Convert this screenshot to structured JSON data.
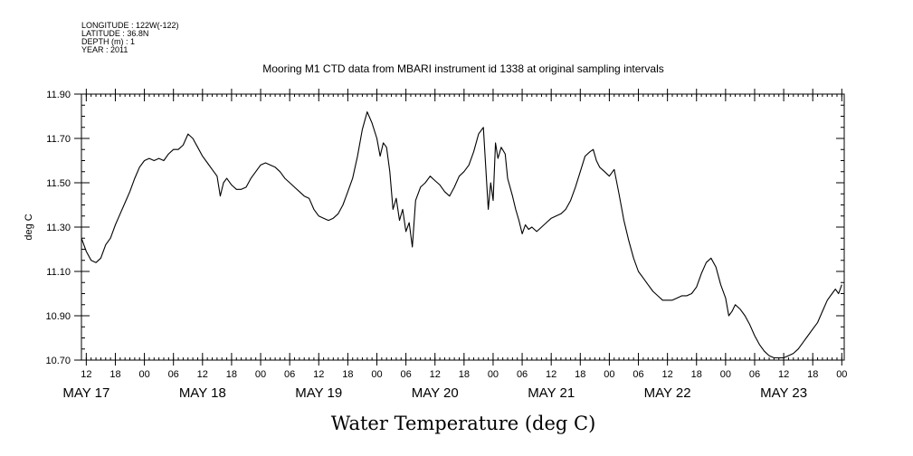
{
  "header": {
    "meta_lines": [
      "LONGITUDE : 122W(-122)",
      "LATITUDE : 36.8N",
      "DEPTH (m) : 1",
      "YEAR : 2011"
    ],
    "title": "Mooring M1 CTD data from MBARI instrument id 1338 at original sampling intervals"
  },
  "chart_data": {
    "type": "line",
    "title": "Mooring M1 CTD data from MBARI instrument id 1338 at original sampling intervals",
    "xlabel": "Water Temperature (deg C)",
    "ylabel": "deg C",
    "ylim": [
      10.7,
      11.9
    ],
    "y_ticks": [
      "10.70",
      "10.90",
      "11.10",
      "11.30",
      "11.50",
      "11.70",
      "11.90"
    ],
    "xlim": [
      "2011-05-17 11:00",
      "2011-05-24 00:30"
    ],
    "x_hour_ticks": [
      {
        "t": "2011-05-17 12:00",
        "label": "12"
      },
      {
        "t": "2011-05-17 18:00",
        "label": "18"
      },
      {
        "t": "2011-05-18 00:00",
        "label": "00"
      },
      {
        "t": "2011-05-18 06:00",
        "label": "06"
      },
      {
        "t": "2011-05-18 12:00",
        "label": "12"
      },
      {
        "t": "2011-05-18 18:00",
        "label": "18"
      },
      {
        "t": "2011-05-19 00:00",
        "label": "00"
      },
      {
        "t": "2011-05-19 06:00",
        "label": "06"
      },
      {
        "t": "2011-05-19 12:00",
        "label": "12"
      },
      {
        "t": "2011-05-19 18:00",
        "label": "18"
      },
      {
        "t": "2011-05-20 00:00",
        "label": "00"
      },
      {
        "t": "2011-05-20 06:00",
        "label": "06"
      },
      {
        "t": "2011-05-20 12:00",
        "label": "12"
      },
      {
        "t": "2011-05-20 18:00",
        "label": "18"
      },
      {
        "t": "2011-05-21 00:00",
        "label": "00"
      },
      {
        "t": "2011-05-21 06:00",
        "label": "06"
      },
      {
        "t": "2011-05-21 12:00",
        "label": "12"
      },
      {
        "t": "2011-05-21 18:00",
        "label": "18"
      },
      {
        "t": "2011-05-22 00:00",
        "label": "00"
      },
      {
        "t": "2011-05-22 06:00",
        "label": "06"
      },
      {
        "t": "2011-05-22 12:00",
        "label": "12"
      },
      {
        "t": "2011-05-22 18:00",
        "label": "18"
      },
      {
        "t": "2011-05-23 00:00",
        "label": "00"
      },
      {
        "t": "2011-05-23 06:00",
        "label": "06"
      },
      {
        "t": "2011-05-23 12:00",
        "label": "12"
      },
      {
        "t": "2011-05-23 18:00",
        "label": "18"
      },
      {
        "t": "2011-05-24 00:00",
        "label": "00"
      }
    ],
    "x_day_labels": [
      {
        "t": "2011-05-17 12:00",
        "label": "MAY 17"
      },
      {
        "t": "2011-05-18 12:00",
        "label": "MAY 18"
      },
      {
        "t": "2011-05-19 12:00",
        "label": "MAY 19"
      },
      {
        "t": "2011-05-20 12:00",
        "label": "MAY 20"
      },
      {
        "t": "2011-05-21 12:00",
        "label": "MAY 21"
      },
      {
        "t": "2011-05-22 12:00",
        "label": "MAY 22"
      },
      {
        "t": "2011-05-23 12:00",
        "label": "MAY 23"
      }
    ],
    "grid": false,
    "series": [
      {
        "color": "#000000",
        "points": [
          [
            "2011-05-17 11:00",
            11.25
          ],
          [
            "2011-05-17 12:00",
            11.19
          ],
          [
            "2011-05-17 13:00",
            11.15
          ],
          [
            "2011-05-17 14:00",
            11.14
          ],
          [
            "2011-05-17 15:00",
            11.16
          ],
          [
            "2011-05-17 16:00",
            11.22
          ],
          [
            "2011-05-17 17:00",
            11.25
          ],
          [
            "2011-05-17 18:00",
            11.31
          ],
          [
            "2011-05-17 19:00",
            11.36
          ],
          [
            "2011-05-17 20:00",
            11.41
          ],
          [
            "2011-05-17 21:00",
            11.46
          ],
          [
            "2011-05-17 22:00",
            11.52
          ],
          [
            "2011-05-17 23:00",
            11.57
          ],
          [
            "2011-05-18 00:00",
            11.6
          ],
          [
            "2011-05-18 01:00",
            11.61
          ],
          [
            "2011-05-18 02:00",
            11.6
          ],
          [
            "2011-05-18 03:00",
            11.61
          ],
          [
            "2011-05-18 04:00",
            11.6
          ],
          [
            "2011-05-18 05:00",
            11.63
          ],
          [
            "2011-05-18 06:00",
            11.65
          ],
          [
            "2011-05-18 07:00",
            11.65
          ],
          [
            "2011-05-18 08:00",
            11.67
          ],
          [
            "2011-05-18 09:00",
            11.72
          ],
          [
            "2011-05-18 10:00",
            11.7
          ],
          [
            "2011-05-18 11:00",
            11.66
          ],
          [
            "2011-05-18 12:00",
            11.62
          ],
          [
            "2011-05-18 13:00",
            11.59
          ],
          [
            "2011-05-18 14:00",
            11.56
          ],
          [
            "2011-05-18 15:00",
            11.53
          ],
          [
            "2011-05-18 15:40",
            11.44
          ],
          [
            "2011-05-18 16:20",
            11.5
          ],
          [
            "2011-05-18 17:00",
            11.52
          ],
          [
            "2011-05-18 18:00",
            11.49
          ],
          [
            "2011-05-18 19:00",
            11.47
          ],
          [
            "2011-05-18 20:00",
            11.47
          ],
          [
            "2011-05-18 21:00",
            11.48
          ],
          [
            "2011-05-18 22:00",
            11.52
          ],
          [
            "2011-05-18 23:00",
            11.55
          ],
          [
            "2011-05-19 00:00",
            11.58
          ],
          [
            "2011-05-19 01:00",
            11.59
          ],
          [
            "2011-05-19 02:00",
            11.58
          ],
          [
            "2011-05-19 03:00",
            11.57
          ],
          [
            "2011-05-19 04:00",
            11.55
          ],
          [
            "2011-05-19 05:00",
            11.52
          ],
          [
            "2011-05-19 06:00",
            11.5
          ],
          [
            "2011-05-19 07:00",
            11.48
          ],
          [
            "2011-05-19 08:00",
            11.46
          ],
          [
            "2011-05-19 09:00",
            11.44
          ],
          [
            "2011-05-19 10:00",
            11.43
          ],
          [
            "2011-05-19 11:00",
            11.38
          ],
          [
            "2011-05-19 12:00",
            11.35
          ],
          [
            "2011-05-19 13:00",
            11.34
          ],
          [
            "2011-05-19 14:00",
            11.33
          ],
          [
            "2011-05-19 15:00",
            11.34
          ],
          [
            "2011-05-19 16:00",
            11.36
          ],
          [
            "2011-05-19 17:00",
            11.4
          ],
          [
            "2011-05-19 18:00",
            11.46
          ],
          [
            "2011-05-19 19:00",
            11.52
          ],
          [
            "2011-05-19 20:00",
            11.62
          ],
          [
            "2011-05-19 21:00",
            11.74
          ],
          [
            "2011-05-19 22:00",
            11.82
          ],
          [
            "2011-05-19 23:00",
            11.77
          ],
          [
            "2011-05-20 00:00",
            11.7
          ],
          [
            "2011-05-20 00:40",
            11.62
          ],
          [
            "2011-05-20 01:20",
            11.68
          ],
          [
            "2011-05-20 02:00",
            11.66
          ],
          [
            "2011-05-20 02:40",
            11.55
          ],
          [
            "2011-05-20 03:20",
            11.38
          ],
          [
            "2011-05-20 04:00",
            11.43
          ],
          [
            "2011-05-20 04:40",
            11.33
          ],
          [
            "2011-05-20 05:20",
            11.38
          ],
          [
            "2011-05-20 06:00",
            11.28
          ],
          [
            "2011-05-20 06:40",
            11.32
          ],
          [
            "2011-05-20 07:20",
            11.21
          ],
          [
            "2011-05-20 08:00",
            11.42
          ],
          [
            "2011-05-20 09:00",
            11.48
          ],
          [
            "2011-05-20 10:00",
            11.5
          ],
          [
            "2011-05-20 11:00",
            11.53
          ],
          [
            "2011-05-20 12:00",
            11.51
          ],
          [
            "2011-05-20 13:00",
            11.49
          ],
          [
            "2011-05-20 14:00",
            11.46
          ],
          [
            "2011-05-20 15:00",
            11.44
          ],
          [
            "2011-05-20 16:00",
            11.48
          ],
          [
            "2011-05-20 17:00",
            11.53
          ],
          [
            "2011-05-20 18:00",
            11.55
          ],
          [
            "2011-05-20 19:00",
            11.58
          ],
          [
            "2011-05-20 20:00",
            11.64
          ],
          [
            "2011-05-20 21:00",
            11.72
          ],
          [
            "2011-05-20 22:00",
            11.75
          ],
          [
            "2011-05-20 23:00",
            11.38
          ],
          [
            "2011-05-20 23:30",
            11.5
          ],
          [
            "2011-05-21 00:00",
            11.42
          ],
          [
            "2011-05-21 00:30",
            11.68
          ],
          [
            "2011-05-21 01:00",
            11.61
          ],
          [
            "2011-05-21 01:40",
            11.66
          ],
          [
            "2011-05-21 02:30",
            11.63
          ],
          [
            "2011-05-21 03:00",
            11.52
          ],
          [
            "2011-05-21 04:00",
            11.44
          ],
          [
            "2011-05-21 04:40",
            11.38
          ],
          [
            "2011-05-21 05:20",
            11.33
          ],
          [
            "2011-05-21 06:00",
            11.27
          ],
          [
            "2011-05-21 06:40",
            11.31
          ],
          [
            "2011-05-21 07:20",
            11.29
          ],
          [
            "2011-05-21 08:00",
            11.3
          ],
          [
            "2011-05-21 09:00",
            11.28
          ],
          [
            "2011-05-21 10:00",
            11.3
          ],
          [
            "2011-05-21 11:00",
            11.32
          ],
          [
            "2011-05-21 12:00",
            11.34
          ],
          [
            "2011-05-21 13:00",
            11.35
          ],
          [
            "2011-05-21 14:00",
            11.36
          ],
          [
            "2011-05-21 15:00",
            11.38
          ],
          [
            "2011-05-21 16:00",
            11.42
          ],
          [
            "2011-05-21 17:00",
            11.48
          ],
          [
            "2011-05-21 18:00",
            11.55
          ],
          [
            "2011-05-21 19:00",
            11.62
          ],
          [
            "2011-05-21 20:00",
            11.64
          ],
          [
            "2011-05-21 20:40",
            11.65
          ],
          [
            "2011-05-21 21:20",
            11.6
          ],
          [
            "2011-05-21 22:00",
            11.57
          ],
          [
            "2011-05-21 23:00",
            11.55
          ],
          [
            "2011-05-22 00:00",
            11.53
          ],
          [
            "2011-05-22 01:00",
            11.56
          ],
          [
            "2011-05-22 02:00",
            11.45
          ],
          [
            "2011-05-22 03:00",
            11.33
          ],
          [
            "2011-05-22 04:00",
            11.24
          ],
          [
            "2011-05-22 05:00",
            11.16
          ],
          [
            "2011-05-22 06:00",
            11.1
          ],
          [
            "2011-05-22 07:00",
            11.07
          ],
          [
            "2011-05-22 08:00",
            11.04
          ],
          [
            "2011-05-22 09:00",
            11.01
          ],
          [
            "2011-05-22 10:00",
            10.99
          ],
          [
            "2011-05-22 11:00",
            10.97
          ],
          [
            "2011-05-22 12:00",
            10.97
          ],
          [
            "2011-05-22 13:00",
            10.97
          ],
          [
            "2011-05-22 14:00",
            10.98
          ],
          [
            "2011-05-22 15:00",
            10.99
          ],
          [
            "2011-05-22 16:00",
            10.99
          ],
          [
            "2011-05-22 17:00",
            11.0
          ],
          [
            "2011-05-22 18:00",
            11.03
          ],
          [
            "2011-05-22 19:00",
            11.09
          ],
          [
            "2011-05-22 20:00",
            11.14
          ],
          [
            "2011-05-22 21:00",
            11.16
          ],
          [
            "2011-05-22 22:00",
            11.12
          ],
          [
            "2011-05-22 23:00",
            11.04
          ],
          [
            "2011-05-23 00:00",
            10.98
          ],
          [
            "2011-05-23 00:40",
            10.9
          ],
          [
            "2011-05-23 01:20",
            10.92
          ],
          [
            "2011-05-23 02:00",
            10.95
          ],
          [
            "2011-05-23 03:00",
            10.93
          ],
          [
            "2011-05-23 04:00",
            10.9
          ],
          [
            "2011-05-23 05:00",
            10.86
          ],
          [
            "2011-05-23 06:00",
            10.81
          ],
          [
            "2011-05-23 07:00",
            10.77
          ],
          [
            "2011-05-23 08:00",
            10.74
          ],
          [
            "2011-05-23 09:00",
            10.72
          ],
          [
            "2011-05-23 10:00",
            10.71
          ],
          [
            "2011-05-23 11:00",
            10.71
          ],
          [
            "2011-05-23 12:00",
            10.71
          ],
          [
            "2011-05-23 13:00",
            10.72
          ],
          [
            "2011-05-23 14:00",
            10.73
          ],
          [
            "2011-05-23 15:00",
            10.75
          ],
          [
            "2011-05-23 16:00",
            10.78
          ],
          [
            "2011-05-23 17:00",
            10.81
          ],
          [
            "2011-05-23 18:00",
            10.84
          ],
          [
            "2011-05-23 19:00",
            10.87
          ],
          [
            "2011-05-23 20:00",
            10.92
          ],
          [
            "2011-05-23 21:00",
            10.97
          ],
          [
            "2011-05-23 22:00",
            11.0
          ],
          [
            "2011-05-23 22:40",
            11.02
          ],
          [
            "2011-05-23 23:20",
            11.0
          ],
          [
            "2011-05-24 00:00",
            11.04
          ]
        ]
      }
    ]
  }
}
